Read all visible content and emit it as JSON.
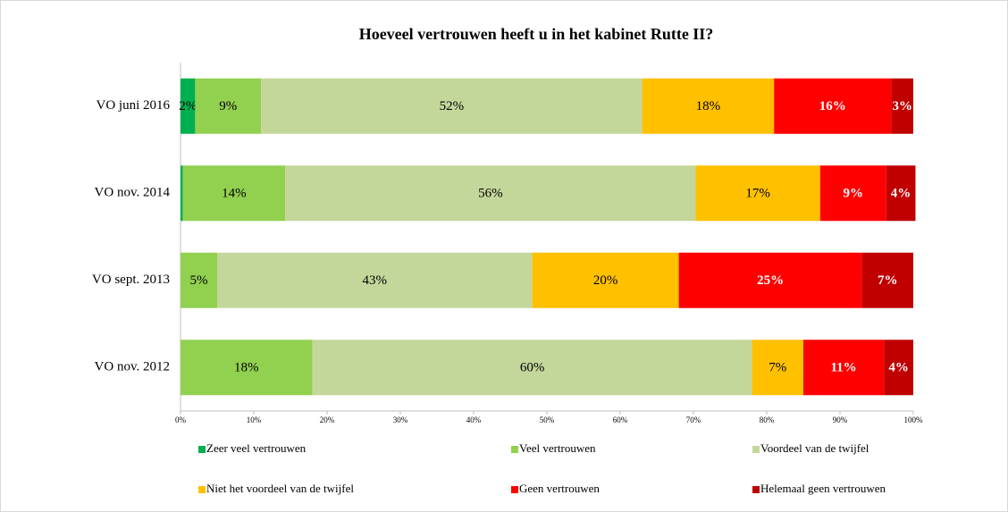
{
  "chart_data": {
    "type": "stacked-bar-horizontal",
    "title": "Hoeveel vertrouwen heeft u in het kabinet Rutte II?",
    "categories": [
      "VO juni 2016",
      "VO nov. 2014",
      "VO sept. 2013",
      "VO nov. 2012"
    ],
    "series": [
      {
        "name": "Zeer veel vertrouwen",
        "color": "#00b050",
        "values": [
          2,
          0.3,
          0,
          0
        ],
        "value_labels": [
          "2%",
          null,
          null,
          null
        ]
      },
      {
        "name": "Veel vertrouwen",
        "color": "#92d050",
        "values": [
          9,
          14,
          5,
          18
        ],
        "value_labels": [
          "9%",
          "14%",
          "5%",
          "18%"
        ]
      },
      {
        "name": "Voordeel van de twijfel",
        "color": "#c4d79b",
        "values": [
          52,
          56,
          43,
          60
        ],
        "value_labels": [
          "52%",
          "56%",
          "43%",
          "60%"
        ]
      },
      {
        "name": "Niet het voordeel van de twijfel",
        "color": "#ffc000",
        "values": [
          18,
          17,
          20,
          7
        ],
        "value_labels": [
          "18%",
          "17%",
          "20%",
          "7%"
        ]
      },
      {
        "name": "Geen vertrouwen",
        "color": "#ff0000",
        "values": [
          16,
          9,
          25,
          11
        ],
        "value_labels": [
          "16%",
          "9%",
          "25%",
          "11%"
        ]
      },
      {
        "name": "Helemaal geen vertrouwen",
        "color": "#c00000",
        "values": [
          3,
          4,
          7,
          4
        ],
        "value_labels": [
          "3%",
          "4%",
          "7%",
          "4%"
        ]
      }
    ],
    "xlim": [
      0,
      100
    ],
    "xticks": [
      {
        "value": 0,
        "label": "0%"
      },
      {
        "value": 10,
        "label": "10%"
      },
      {
        "value": 20,
        "label": "20%"
      },
      {
        "value": 30,
        "label": "30%"
      },
      {
        "value": 40,
        "label": "40%"
      },
      {
        "value": 50,
        "label": "50%"
      },
      {
        "value": 60,
        "label": "60%"
      },
      {
        "value": 70,
        "label": "70%"
      },
      {
        "value": 80,
        "label": "80%"
      },
      {
        "value": 90,
        "label": "90%"
      },
      {
        "value": 100,
        "label": "100%"
      }
    ],
    "grid": false,
    "legend": "bottom"
  }
}
